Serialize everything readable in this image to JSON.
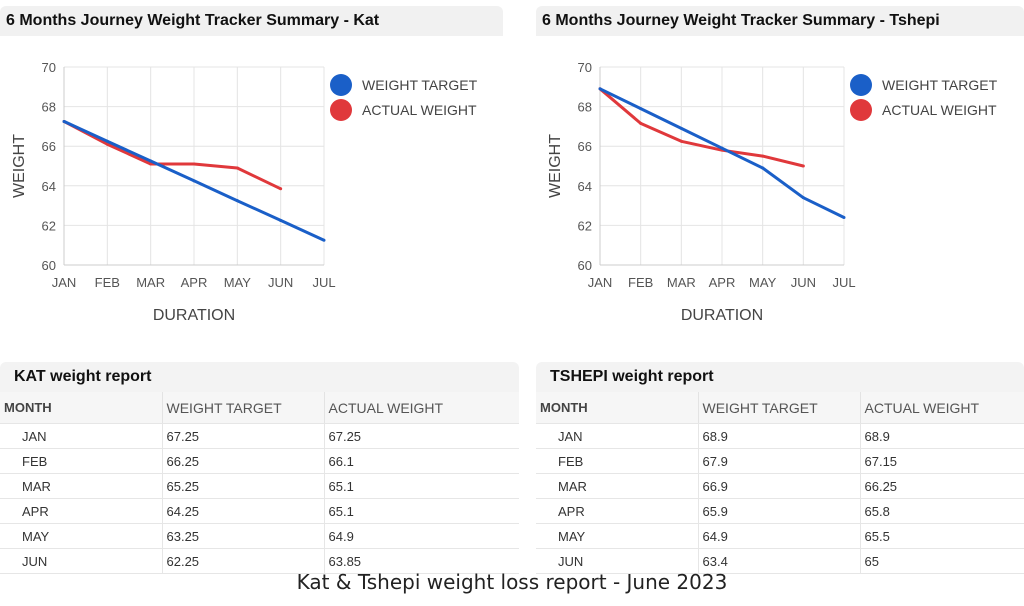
{
  "charts": {
    "kat": {
      "title": "6 Months Journey Weight Tracker Summary - Kat",
      "xlabel": "DURATION",
      "ylabel": "WEIGHT"
    },
    "tshepi": {
      "title": "6 Months Journey Weight Tracker Summary - Tshepi",
      "xlabel": "DURATION",
      "ylabel": "WEIGHT"
    }
  },
  "chart_data": [
    {
      "type": "line",
      "title": "6 Months Journey Weight Tracker Summary - Kat",
      "xlabel": "DURATION",
      "ylabel": "WEIGHT",
      "categories": [
        "JAN",
        "FEB",
        "MAR",
        "APR",
        "MAY",
        "JUN",
        "JUL"
      ],
      "ylim": [
        60,
        70
      ],
      "yticks": [
        "60",
        "62",
        "64",
        "66",
        "68",
        "70"
      ],
      "grid": true,
      "legend_position": "right",
      "series": [
        {
          "name": "WEIGHT TARGET",
          "color": "#1a5fc8",
          "values": [
            67.25,
            66.25,
            65.25,
            64.25,
            63.25,
            62.25,
            61.25
          ]
        },
        {
          "name": "ACTUAL WEIGHT",
          "color": "#e0383b",
          "values": [
            67.25,
            66.1,
            65.1,
            65.1,
            64.9,
            63.85,
            null
          ]
        }
      ]
    },
    {
      "type": "line",
      "title": "6 Months Journey Weight Tracker Summary - Tshepi",
      "xlabel": "DURATION",
      "ylabel": "WEIGHT",
      "categories": [
        "JAN",
        "FEB",
        "MAR",
        "APR",
        "MAY",
        "JUN",
        "JUL"
      ],
      "ylim": [
        60,
        70
      ],
      "yticks": [
        "60",
        "62",
        "64",
        "66",
        "68",
        "70"
      ],
      "grid": true,
      "legend_position": "right",
      "series": [
        {
          "name": "WEIGHT TARGET",
          "color": "#1a5fc8",
          "values": [
            68.9,
            67.9,
            66.9,
            65.9,
            64.9,
            63.4,
            62.4
          ]
        },
        {
          "name": "ACTUAL WEIGHT",
          "color": "#e0383b",
          "values": [
            68.9,
            67.15,
            66.25,
            65.8,
            65.5,
            65,
            null
          ]
        }
      ]
    }
  ],
  "reports": {
    "kat": {
      "title": "KAT weight report",
      "headers": [
        "MONTH",
        "WEIGHT TARGET",
        "ACTUAL WEIGHT"
      ],
      "rows": [
        [
          "JAN",
          "67.25",
          "67.25"
        ],
        [
          "FEB",
          "66.25",
          "66.1"
        ],
        [
          "MAR",
          "65.25",
          "65.1"
        ],
        [
          "APR",
          "64.25",
          "65.1"
        ],
        [
          "MAY",
          "63.25",
          "64.9"
        ],
        [
          "JUN",
          "62.25",
          "63.85"
        ]
      ]
    },
    "tshepi": {
      "title": "TSHEPI weight report",
      "headers": [
        "MONTH",
        "WEIGHT TARGET",
        "ACTUAL WEIGHT"
      ],
      "rows": [
        [
          "JAN",
          "68.9",
          "68.9"
        ],
        [
          "FEB",
          "67.9",
          "67.15"
        ],
        [
          "MAR",
          "66.9",
          "66.25"
        ],
        [
          "APR",
          "65.9",
          "65.8"
        ],
        [
          "MAY",
          "64.9",
          "65.5"
        ],
        [
          "JUN",
          "63.4",
          "65"
        ]
      ]
    }
  },
  "footer": "Kat & Tshepi weight loss report - June 2023"
}
